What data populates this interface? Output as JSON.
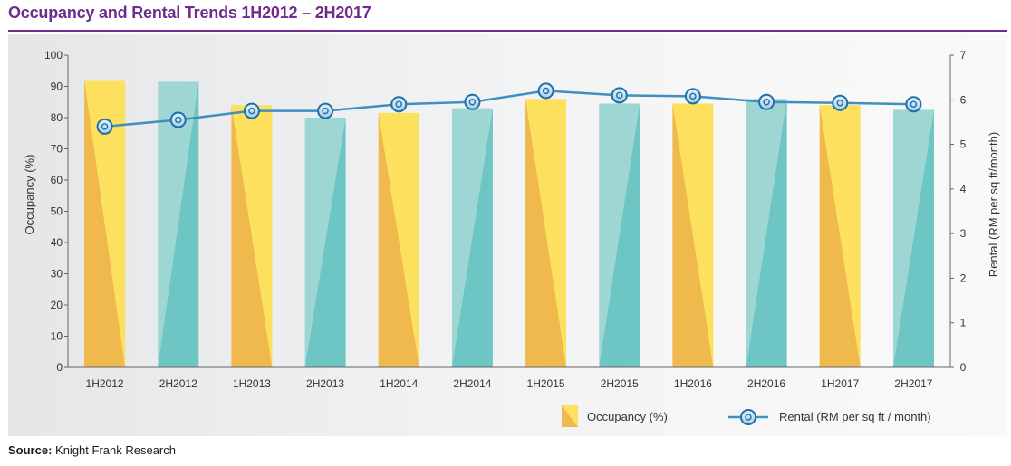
{
  "title": "Occupancy and Rental Trends 1H2012 – 2H2017",
  "source": {
    "label": "Source:",
    "text": "Knight Frank Research"
  },
  "chart_data": {
    "type": "bar",
    "categories": [
      "1H2012",
      "2H2012",
      "1H2013",
      "2H2013",
      "1H2014",
      "2H2014",
      "1H2015",
      "2H2015",
      "1H2016",
      "2H2016",
      "1H2017",
      "2H2017"
    ],
    "series": [
      {
        "name": "Occupancy (%)",
        "kind": "bar",
        "axis": "left",
        "values": [
          92,
          91.5,
          84,
          80,
          81.5,
          83,
          86,
          84.5,
          84.5,
          86,
          84,
          82.5
        ]
      },
      {
        "name": "Rental (RM per sq ft / month)",
        "kind": "line",
        "axis": "right",
        "values": [
          5.4,
          5.55,
          5.75,
          5.75,
          5.9,
          5.95,
          6.2,
          6.1,
          6.08,
          5.95,
          5.93,
          5.9
        ]
      }
    ],
    "ylabel": "Occupancy (%)",
    "y2label": "Rental (RM per sq ft/month)",
    "ylim": [
      0,
      100
    ],
    "y2lim": [
      0,
      7
    ],
    "yticks": [
      0,
      10,
      20,
      30,
      40,
      50,
      60,
      70,
      80,
      90,
      100
    ],
    "y2ticks": [
      0,
      1,
      2,
      3,
      4,
      5,
      6,
      7
    ],
    "legend_position": "bottom-right",
    "colors": {
      "bar_yellow_light": "#fde15e",
      "bar_yellow_dark": "#f0b94e",
      "bar_teal_light": "#9ed6d4",
      "bar_teal_dark": "#6ec6c4",
      "line": "#3f8fc0",
      "marker_fill": "#c3e0f2",
      "marker_ring": "#1f6fa8"
    }
  }
}
